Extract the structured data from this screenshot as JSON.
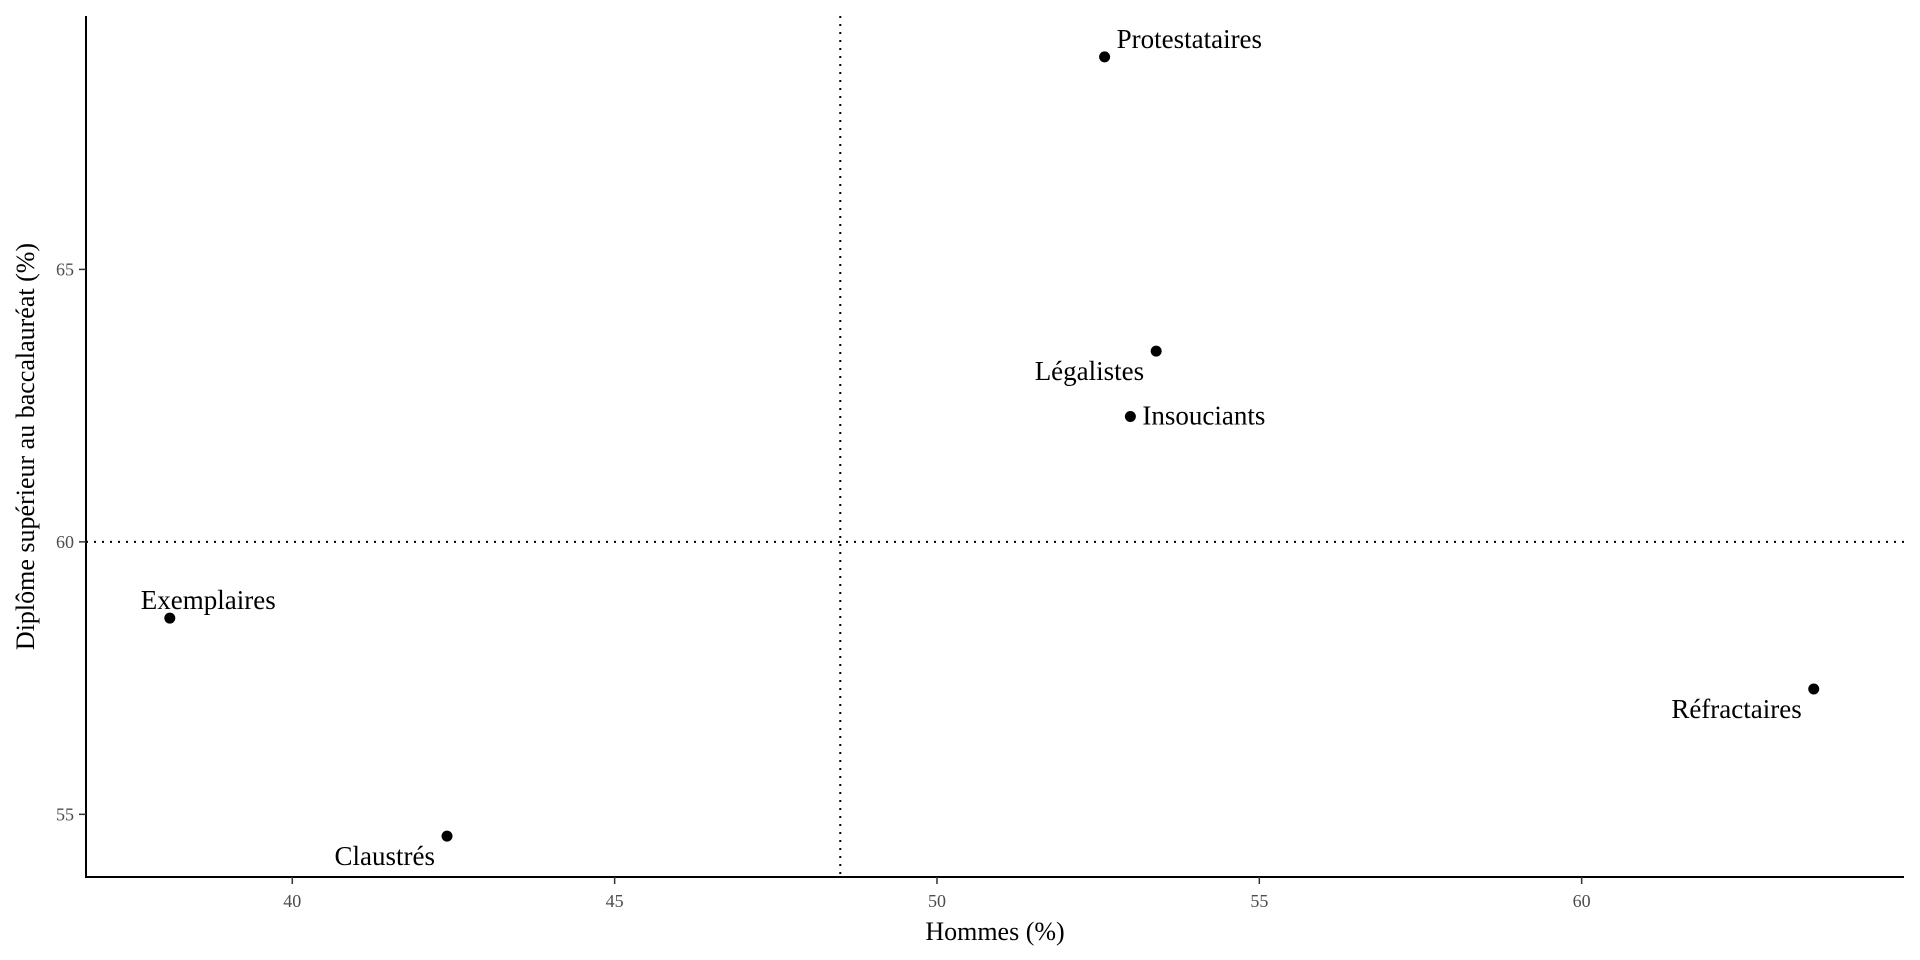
{
  "chart_data": {
    "type": "scatter",
    "xlabel": "Hommes (%)",
    "ylabel": "Diplôme supérieur au baccalauréat (%)",
    "xlim": [
      36.8,
      65.0
    ],
    "ylim": [
      53.85,
      69.65
    ],
    "x_ticks": [
      40,
      45,
      50,
      55,
      60
    ],
    "y_ticks": [
      55,
      60,
      65
    ],
    "reference_lines": {
      "vertical_x": 48.5,
      "horizontal_y": 60,
      "style": "dotted"
    },
    "grid": false,
    "legend": "none",
    "points": [
      {
        "label": "Protestataires",
        "x": 52.6,
        "y": 68.9,
        "label_position": "upper-right"
      },
      {
        "label": "Légalistes",
        "x": 53.4,
        "y": 63.5,
        "label_position": "lower-left"
      },
      {
        "label": "Insouciants",
        "x": 53.0,
        "y": 62.3,
        "label_position": "right"
      },
      {
        "label": "Exemplaires",
        "x": 38.1,
        "y": 58.6,
        "label_position": "upper-right"
      },
      {
        "label": "Réfractaires",
        "x": 63.6,
        "y": 57.3,
        "label_position": "lower-left"
      },
      {
        "label": "Claustrés",
        "x": 42.4,
        "y": 54.6,
        "label_position": "lower-left"
      }
    ],
    "colors": {
      "point": "#000000",
      "axis": "#000000",
      "tick_label": "#4d4d4d"
    }
  }
}
